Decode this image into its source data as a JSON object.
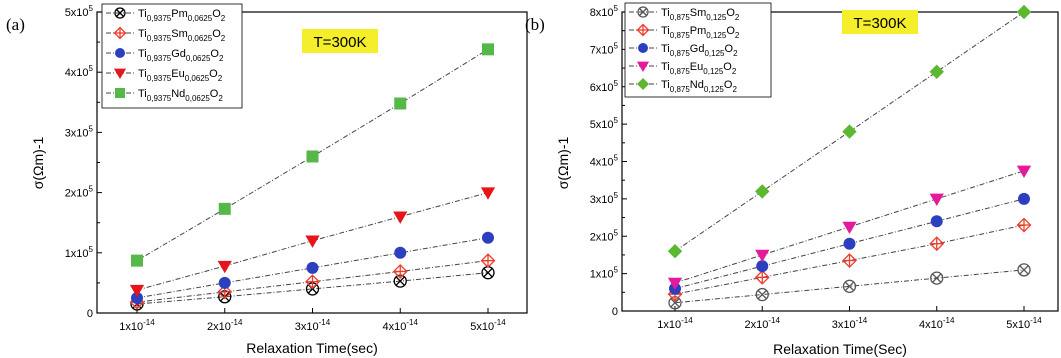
{
  "chart_data": [
    {
      "type": "line",
      "panel_label": "(a)",
      "annotation": "T=300K",
      "xlabel": "Relaxation Time(sec)",
      "ylabel": "σ(Ωm)-1",
      "x": [
        1e-14,
        2e-14,
        3e-14,
        4e-14,
        5e-14
      ],
      "x_tick_labels": [
        [
          "1x10",
          "-14"
        ],
        [
          "2x10",
          "-14"
        ],
        [
          "3x10",
          "-14"
        ],
        [
          "4x10",
          "-14"
        ],
        [
          "5x10",
          "-14"
        ]
      ],
      "ylim": [
        0,
        500000
      ],
      "y_ticks": [
        0,
        100000,
        200000,
        300000,
        400000,
        500000
      ],
      "y_tick_labels": [
        [
          "0",
          ""
        ],
        [
          "1x10",
          "5"
        ],
        [
          "2x10",
          "5"
        ],
        [
          "3x10",
          "5"
        ],
        [
          "4x10",
          "5"
        ],
        [
          "5x10",
          "5"
        ]
      ],
      "legend_position": "top-left",
      "grid": false,
      "series": [
        {
          "name": [
            [
              "Ti",
              ""
            ],
            [
              "0,9375",
              "sub"
            ],
            [
              "Pm",
              ""
            ],
            [
              "0,0625",
              "sub"
            ],
            [
              "O",
              ""
            ],
            [
              "2",
              "sub"
            ]
          ],
          "marker": "circle-x",
          "color": "#000000",
          "values": [
            15000,
            27000,
            40000,
            53000,
            67000
          ]
        },
        {
          "name": [
            [
              "Ti",
              ""
            ],
            [
              "0,9375",
              "sub"
            ],
            [
              "Sm",
              ""
            ],
            [
              "0,0625",
              "sub"
            ],
            [
              "O",
              ""
            ],
            [
              "2",
              "sub"
            ]
          ],
          "marker": "diamond-plus",
          "color": "#ef3b2c",
          "values": [
            18000,
            35000,
            52000,
            69000,
            87000
          ]
        },
        {
          "name": [
            [
              "Ti",
              ""
            ],
            [
              "0,9375",
              "sub"
            ],
            [
              "Gd",
              ""
            ],
            [
              "0,0625",
              "sub"
            ],
            [
              "O",
              ""
            ],
            [
              "2",
              "sub"
            ]
          ],
          "marker": "circle",
          "color": "#2c3fbf",
          "values": [
            25000,
            50000,
            75000,
            100000,
            125000
          ]
        },
        {
          "name": [
            [
              "Ti",
              ""
            ],
            [
              "0,9375",
              "sub"
            ],
            [
              "Eu",
              ""
            ],
            [
              "0,0625",
              "sub"
            ],
            [
              "O",
              ""
            ],
            [
              "2",
              "sub"
            ]
          ],
          "marker": "triangle-down",
          "color": "#e8141b",
          "values": [
            38000,
            78000,
            120000,
            160000,
            200000
          ]
        },
        {
          "name": [
            [
              "Ti",
              ""
            ],
            [
              "0,9375",
              "sub"
            ],
            [
              "Nd",
              ""
            ],
            [
              "0,0625",
              "sub"
            ],
            [
              "O",
              ""
            ],
            [
              "2",
              "sub"
            ]
          ],
          "marker": "square",
          "color": "#55b848",
          "values": [
            87000,
            173000,
            260000,
            348000,
            438000
          ]
        }
      ]
    },
    {
      "type": "line",
      "panel_label": "(b)",
      "annotation": "T=300K",
      "xlabel": "Relaxation Time(Sec)",
      "ylabel": "σ(Ωm)-1",
      "x": [
        1e-14,
        2e-14,
        3e-14,
        4e-14,
        5e-14
      ],
      "x_tick_labels": [
        [
          "1x10",
          "-14"
        ],
        [
          "2x10",
          "-14"
        ],
        [
          "3x10",
          "-14"
        ],
        [
          "4x10",
          "-14"
        ],
        [
          "5x10",
          "-14"
        ]
      ],
      "ylim": [
        0,
        800000
      ],
      "y_ticks": [
        0,
        100000,
        200000,
        300000,
        400000,
        500000,
        600000,
        700000,
        800000
      ],
      "y_tick_labels": [
        [
          "0",
          ""
        ],
        [
          "1x10",
          "5"
        ],
        [
          "2x10",
          "5"
        ],
        [
          "3x10",
          "5"
        ],
        [
          "4x10",
          "5"
        ],
        [
          "5x10",
          "5"
        ],
        [
          "6x10",
          "5"
        ],
        [
          "7x10",
          "5"
        ],
        [
          "8x10",
          "5"
        ]
      ],
      "legend_position": "top-left",
      "grid": false,
      "series": [
        {
          "name": [
            [
              "Ti",
              ""
            ],
            [
              "0,875",
              "sub"
            ],
            [
              "Sm",
              ""
            ],
            [
              "0,125",
              "sub"
            ],
            [
              "O",
              ""
            ],
            [
              "2",
              "sub"
            ]
          ],
          "marker": "circle-x",
          "color": "#555555",
          "values": [
            22000,
            44000,
            66000,
            88000,
            110000
          ]
        },
        {
          "name": [
            [
              "Ti",
              ""
            ],
            [
              "0,875",
              "sub"
            ],
            [
              "Pm",
              ""
            ],
            [
              "0,125",
              "sub"
            ],
            [
              "O",
              ""
            ],
            [
              "2",
              "sub"
            ]
          ],
          "marker": "diamond-plus",
          "color": "#ef3b2c",
          "values": [
            45000,
            90000,
            135000,
            180000,
            230000
          ]
        },
        {
          "name": [
            [
              "Ti",
              ""
            ],
            [
              "0,875",
              "sub"
            ],
            [
              "Gd",
              ""
            ],
            [
              "0,125",
              "sub"
            ],
            [
              "O",
              ""
            ],
            [
              "2",
              "sub"
            ]
          ],
          "marker": "circle",
          "color": "#2c3fbf",
          "values": [
            60000,
            120000,
            180000,
            240000,
            300000
          ]
        },
        {
          "name": [
            [
              "Ti",
              ""
            ],
            [
              "0,875",
              "sub"
            ],
            [
              "Eu",
              ""
            ],
            [
              "0,125",
              "sub"
            ],
            [
              "O",
              ""
            ],
            [
              "2",
              "sub"
            ]
          ],
          "marker": "triangle-down",
          "color": "#e6199b",
          "values": [
            75000,
            150000,
            225000,
            300000,
            375000
          ]
        },
        {
          "name": [
            [
              "Ti",
              ""
            ],
            [
              "0,875",
              "sub"
            ],
            [
              "Nd",
              ""
            ],
            [
              "0,125",
              "sub"
            ],
            [
              "O",
              ""
            ],
            [
              "2",
              "sub"
            ]
          ],
          "marker": "diamond",
          "color": "#5cb82f",
          "values": [
            160000,
            320000,
            480000,
            640000,
            800000
          ]
        }
      ]
    }
  ]
}
